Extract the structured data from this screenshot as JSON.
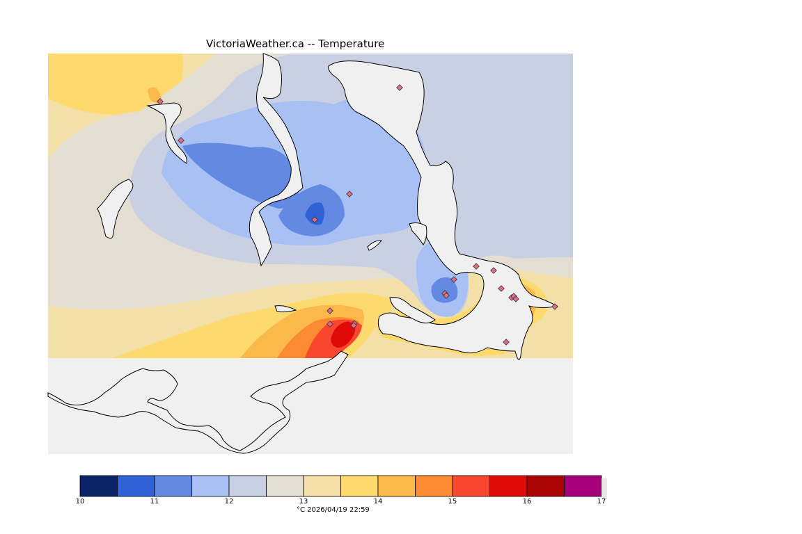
{
  "title": "VictoriaWeather.ca -- Temperature",
  "legend": {
    "colors": [
      "#0b2468",
      "#3161d6",
      "#6389e3",
      "#a8c0f4",
      "#c9d0e3",
      "#e4ddd1",
      "#f2e0a8",
      "#fdd96e",
      "#fbb94b",
      "#fb8a30",
      "#f9472f",
      "#e00b08",
      "#aa0404",
      "#a5007a"
    ],
    "ticks": [
      "10",
      "11",
      "12",
      "13",
      "14",
      "15",
      "16",
      "17"
    ],
    "unit": "°C",
    "timestamp": "2026/04/19 22:59"
  },
  "footer": "°C  2026/04/19 22:59",
  "stations": [
    {
      "type": "station"
    },
    {
      "type": "station"
    },
    {
      "type": "station"
    },
    {
      "type": "station"
    },
    {
      "type": "station"
    },
    {
      "type": "station"
    },
    {
      "type": "station"
    },
    {
      "type": "station"
    },
    {
      "type": "station"
    },
    {
      "type": "station"
    },
    {
      "type": "station"
    },
    {
      "type": "station"
    },
    {
      "type": "station"
    },
    {
      "type": "station"
    },
    {
      "type": "station"
    },
    {
      "type": "station"
    },
    {
      "type": "station"
    },
    {
      "type": "station"
    },
    {
      "type": "station"
    },
    {
      "type": "station"
    }
  ]
}
